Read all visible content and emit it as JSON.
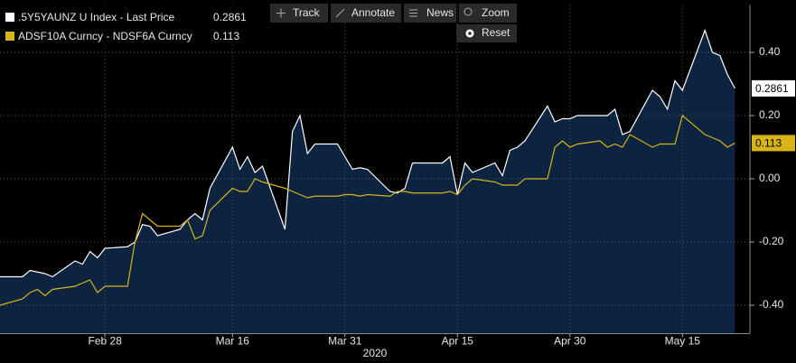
{
  "toolbar": [
    "Track",
    "Annotate",
    "News",
    "Zoom",
    "Reset"
  ],
  "chart_data": {
    "type": "line",
    "x_label": "2020",
    "x": [
      "2020-02-14",
      "2020-02-17",
      "2020-02-18",
      "2020-02-19",
      "2020-02-20",
      "2020-02-21",
      "2020-02-24",
      "2020-02-25",
      "2020-02-26",
      "2020-02-27",
      "2020-02-28",
      "2020-03-02",
      "2020-03-03",
      "2020-03-04",
      "2020-03-05",
      "2020-03-06",
      "2020-03-09",
      "2020-03-10",
      "2020-03-11",
      "2020-03-12",
      "2020-03-13",
      "2020-03-16",
      "2020-03-17",
      "2020-03-18",
      "2020-03-19",
      "2020-03-20",
      "2020-03-23",
      "2020-03-24",
      "2020-03-25",
      "2020-03-26",
      "2020-03-27",
      "2020-03-30",
      "2020-03-31",
      "2020-04-01",
      "2020-04-02",
      "2020-04-03",
      "2020-04-06",
      "2020-04-07",
      "2020-04-08",
      "2020-04-09",
      "2020-04-13",
      "2020-04-14",
      "2020-04-15",
      "2020-04-16",
      "2020-04-17",
      "2020-04-20",
      "2020-04-21",
      "2020-04-22",
      "2020-04-23",
      "2020-04-24",
      "2020-04-27",
      "2020-04-28",
      "2020-04-29",
      "2020-04-30",
      "2020-05-01",
      "2020-05-04",
      "2020-05-05",
      "2020-05-06",
      "2020-05-07",
      "2020-05-08",
      "2020-05-11",
      "2020-05-12",
      "2020-05-13",
      "2020-05-14",
      "2020-05-15",
      "2020-05-18",
      "2020-05-19",
      "2020-05-20",
      "2020-05-21",
      "2020-05-22"
    ],
    "series": [
      {
        "name": ".5Y5YAUNZ U Index - Last Price",
        "color": "#ffffff",
        "fill": "#0c2440",
        "values": [
          -0.31,
          -0.31,
          -0.29,
          -0.295,
          -0.3,
          -0.31,
          -0.26,
          -0.27,
          -0.23,
          -0.25,
          -0.22,
          -0.215,
          -0.2,
          -0.145,
          -0.15,
          -0.18,
          -0.16,
          -0.13,
          -0.11,
          -0.13,
          -0.03,
          0.1,
          0.03,
          0.07,
          0.02,
          0.04,
          -0.16,
          0.15,
          0.2,
          0.08,
          0.11,
          0.11,
          0.07,
          0.03,
          0.035,
          0.03,
          -0.04,
          -0.045,
          -0.03,
          0.05,
          0.05,
          0.07,
          -0.05,
          0.05,
          0.02,
          0.05,
          0.01,
          0.09,
          0.1,
          0.12,
          0.23,
          0.18,
          0.19,
          0.19,
          0.2,
          0.2,
          0.2,
          0.22,
          0.14,
          0.15,
          0.28,
          0.26,
          0.22,
          0.31,
          0.28,
          0.47,
          0.4,
          0.39,
          0.33,
          0.2861
        ]
      },
      {
        "name": "ADSF10A Curncy - NDSF6A Curncy",
        "color": "#d8b419",
        "values": [
          -0.4,
          -0.38,
          -0.36,
          -0.35,
          -0.37,
          -0.35,
          -0.34,
          -0.33,
          -0.32,
          -0.36,
          -0.34,
          -0.34,
          -0.2,
          -0.11,
          -0.13,
          -0.15,
          -0.15,
          -0.13,
          -0.19,
          -0.18,
          -0.1,
          -0.03,
          -0.04,
          -0.04,
          0.0,
          -0.01,
          -0.03,
          -0.04,
          -0.05,
          -0.06,
          -0.055,
          -0.055,
          -0.05,
          -0.05,
          -0.055,
          -0.05,
          -0.055,
          -0.04,
          -0.04,
          -0.045,
          -0.045,
          -0.04,
          -0.05,
          -0.02,
          0.0,
          -0.01,
          -0.02,
          -0.02,
          -0.02,
          0.0,
          0.0,
          0.1,
          0.12,
          0.1,
          0.11,
          0.12,
          0.1,
          0.11,
          0.1,
          0.14,
          0.1,
          0.11,
          0.11,
          0.11,
          0.2,
          0.14,
          0.13,
          0.12,
          0.1,
          0.113
        ]
      }
    ],
    "xlim": [
      "2020-02-14",
      "2020-05-24"
    ],
    "xticks": [
      {
        "value": "2020-02-28",
        "label": "Feb 28"
      },
      {
        "value": "2020-03-16",
        "label": "Mar 16"
      },
      {
        "value": "2020-03-31",
        "label": "Mar 31"
      },
      {
        "value": "2020-04-15",
        "label": "Apr 15"
      },
      {
        "value": "2020-04-30",
        "label": "Apr 30"
      },
      {
        "value": "2020-05-15",
        "label": "May 15"
      }
    ],
    "ylim": [
      -0.49,
      0.55
    ],
    "yticks": [
      {
        "value": -0.4,
        "label": "-0.40"
      },
      {
        "value": -0.2,
        "label": "-0.20"
      },
      {
        "value": 0,
        "label": "0.00"
      },
      {
        "value": 0.2,
        "label": "0.20"
      },
      {
        "value": 0.4,
        "label": "0.40"
      }
    ],
    "grid": true
  }
}
